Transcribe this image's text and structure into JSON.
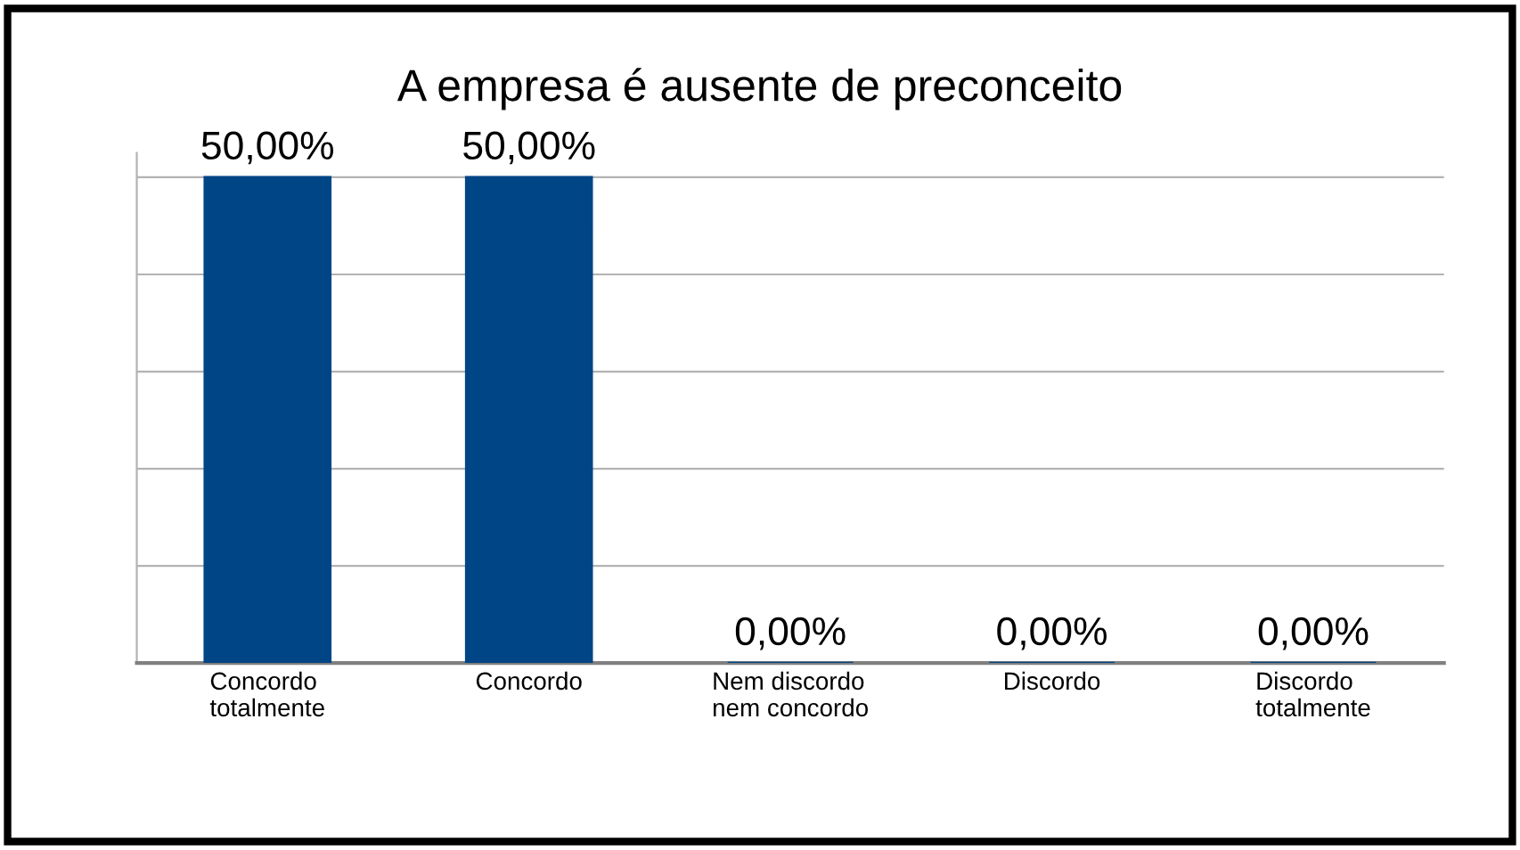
{
  "chart_data": {
    "type": "bar",
    "title": "A empresa é ausente de preconceito",
    "categories": [
      "Concordo\ntotalmente",
      "Concordo",
      "Nem discordo\nnem concordo",
      "Discordo",
      "Discordo\ntotalmente"
    ],
    "values": [
      50,
      50,
      0,
      0,
      0
    ],
    "value_labels": [
      "50,00%",
      "50,00%",
      "0,00%",
      "0,00%",
      "0,00%"
    ],
    "color": "#004586",
    "grid": "y",
    "tick_labels": "x",
    "legend": false
  }
}
